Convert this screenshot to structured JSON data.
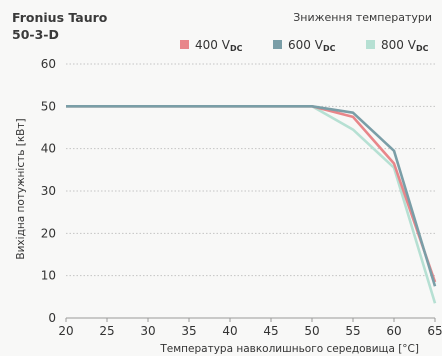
{
  "header": {
    "product": "Fronius Tauro\n50-3-D",
    "subtitle": "Зниження температури"
  },
  "chart_data": {
    "type": "line",
    "title": "Fronius Tauro 50-3-D",
    "subtitle": "Зниження температури",
    "xlabel": "Температура навколишнього середовища [°C]",
    "ylabel": "Вихідна потужність [кВт]",
    "xlim": [
      20,
      65
    ],
    "ylim": [
      0,
      60
    ],
    "xticks": [
      20,
      25,
      30,
      35,
      40,
      45,
      50,
      55,
      60,
      65
    ],
    "yticks": [
      0,
      10,
      20,
      30,
      40,
      50,
      60
    ],
    "grid": "horizontal",
    "legend_position": "top-right",
    "series": [
      {
        "name": "400 V",
        "name_sub": "DC",
        "color": "#e8868a",
        "x": [
          20,
          50,
          55,
          60,
          65
        ],
        "y": [
          50,
          50,
          47.5,
          36.5,
          8.5
        ]
      },
      {
        "name": "600 V",
        "name_sub": "DC",
        "color": "#7a9ea7",
        "x": [
          20,
          50,
          55,
          60,
          65
        ],
        "y": [
          50,
          50,
          48.5,
          39.5,
          7.5
        ]
      },
      {
        "name": "800 V",
        "name_sub": "DC",
        "color": "#b6e0d3",
        "x": [
          20,
          50,
          55,
          60,
          65
        ],
        "y": [
          50,
          50,
          44.5,
          35.5,
          3.5
        ]
      }
    ]
  }
}
